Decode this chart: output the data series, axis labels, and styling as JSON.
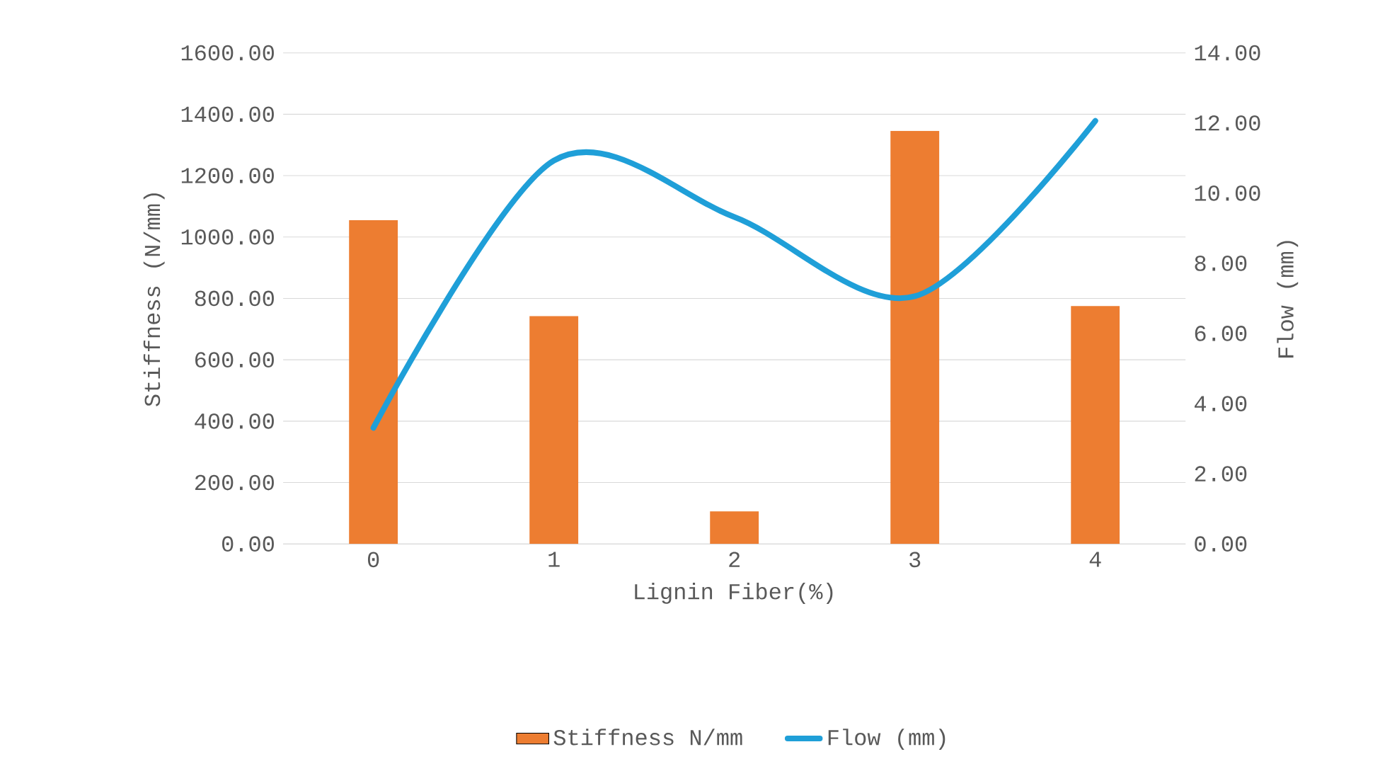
{
  "chart_data": {
    "type": "bar",
    "xlabel": "Lignin Fiber(%)",
    "ylabel": "Stiffness (N/mm)",
    "y2label": "Flow (mm)",
    "categories": [
      "0",
      "1",
      "2",
      "3",
      "4"
    ],
    "series": [
      {
        "name": "Stiffness N/mm",
        "color": "#ed7d31",
        "values": [
          1055,
          742,
          106,
          1346,
          775
        ]
      },
      {
        "name": "Flow (mm)",
        "type": "line",
        "axis": "y2",
        "color": "#1f9fd8",
        "values": [
          3.31,
          10.93,
          9.32,
          7.06,
          12.06
        ]
      }
    ],
    "ylim": [
      0,
      1600
    ],
    "yticks": [
      {
        "value": 0,
        "label": "0.00"
      },
      {
        "value": 200,
        "label": "200.00"
      },
      {
        "value": 400,
        "label": "400.00"
      },
      {
        "value": 600,
        "label": "600.00"
      },
      {
        "value": 800,
        "label": "800.00"
      },
      {
        "value": 1000,
        "label": "1000.00"
      },
      {
        "value": 1200,
        "label": "1200.00"
      },
      {
        "value": 1400,
        "label": "1400.00"
      },
      {
        "value": 1600,
        "label": "1600.00"
      }
    ],
    "y2lim": [
      0,
      14
    ],
    "y2ticks": [
      {
        "value": 0,
        "label": "0.00"
      },
      {
        "value": 2,
        "label": "2.00"
      },
      {
        "value": 4,
        "label": "4.00"
      },
      {
        "value": 6,
        "label": "6.00"
      },
      {
        "value": 8,
        "label": "8.00"
      },
      {
        "value": 10,
        "label": "10.00"
      },
      {
        "value": 12,
        "label": "12.00"
      },
      {
        "value": 14,
        "label": "14.00"
      }
    ],
    "grid": "y",
    "legend": "bottom"
  }
}
